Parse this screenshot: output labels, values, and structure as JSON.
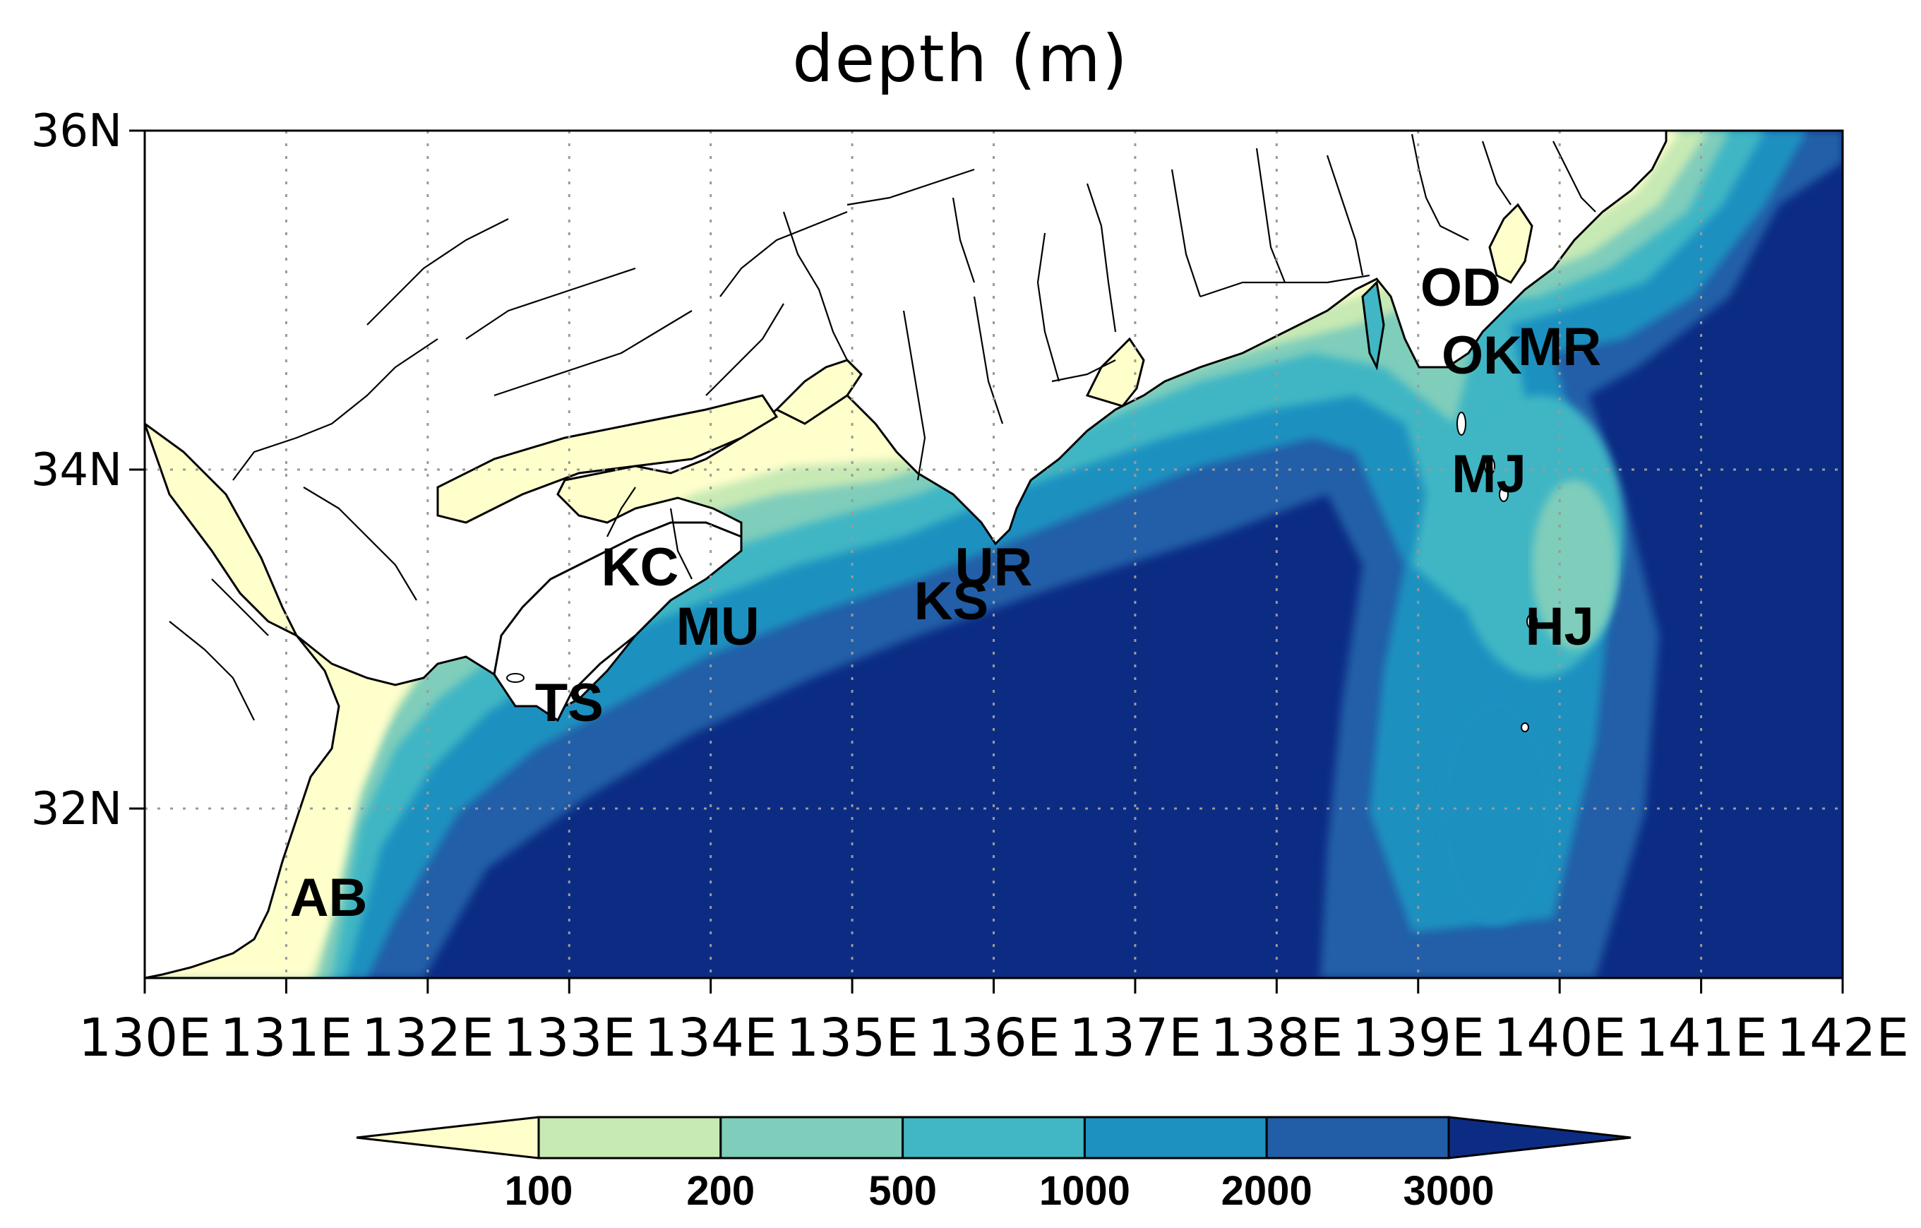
{
  "figure": {
    "title": "depth (m)"
  },
  "map": {
    "lon_range": [
      130,
      142
    ],
    "lat_range": [
      31.0,
      36.0
    ],
    "lon_ticks": [
      {
        "value": 130,
        "label": "130E"
      },
      {
        "value": 131,
        "label": "131E"
      },
      {
        "value": 132,
        "label": "132E"
      },
      {
        "value": 133,
        "label": "133E"
      },
      {
        "value": 134,
        "label": "134E"
      },
      {
        "value": 135,
        "label": "135E"
      },
      {
        "value": 136,
        "label": "136E"
      },
      {
        "value": 137,
        "label": "137E"
      },
      {
        "value": 138,
        "label": "138E"
      },
      {
        "value": 139,
        "label": "139E"
      },
      {
        "value": 140,
        "label": "140E"
      },
      {
        "value": 141,
        "label": "141E"
      },
      {
        "value": 142,
        "label": "142E"
      }
    ],
    "lat_ticks": [
      {
        "value": 32,
        "label": "32N"
      },
      {
        "value": 34,
        "label": "34N"
      },
      {
        "value": 36,
        "label": "36N"
      }
    ],
    "grid": true,
    "land_color": "#ffffff",
    "stations": [
      {
        "code": "OD",
        "lon": 139.3,
        "lat": 35.05
      },
      {
        "code": "OK",
        "lon": 139.45,
        "lat": 34.65
      },
      {
        "code": "MR",
        "lon": 140.0,
        "lat": 34.7
      },
      {
        "code": "MJ",
        "lon": 139.5,
        "lat": 33.95
      },
      {
        "code": "HJ",
        "lon": 140.0,
        "lat": 33.05
      },
      {
        "code": "UR",
        "lon": 136.0,
        "lat": 33.4
      },
      {
        "code": "KS",
        "lon": 135.7,
        "lat": 33.2
      },
      {
        "code": "KC",
        "lon": 133.5,
        "lat": 33.4
      },
      {
        "code": "MU",
        "lon": 134.05,
        "lat": 33.05
      },
      {
        "code": "TS",
        "lon": 133.0,
        "lat": 32.6
      },
      {
        "code": "AB",
        "lon": 131.3,
        "lat": 31.45
      }
    ]
  },
  "colorbar": {
    "levels": [
      "100",
      "200",
      "500",
      "1000",
      "2000",
      "3000"
    ],
    "colors": [
      "#ffffcc",
      "#c7e9b4",
      "#7fcdbb",
      "#41b6c4",
      "#1d91c0",
      "#225ea8",
      "#0c2c84"
    ]
  }
}
